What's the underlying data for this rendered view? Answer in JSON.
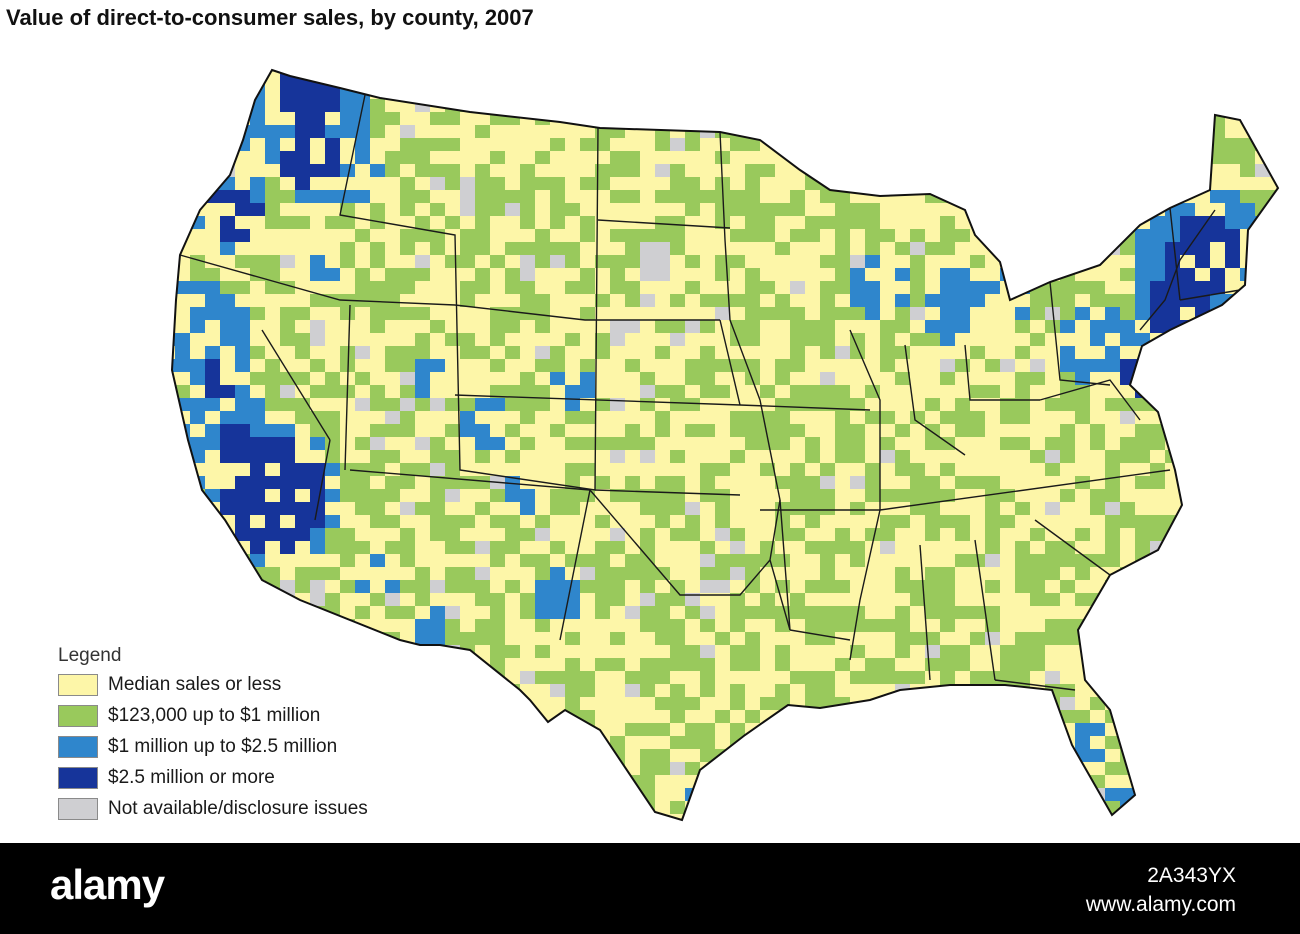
{
  "title": "Value of direct-to-consumer sales, by county, 2007",
  "legend": {
    "title": "Legend",
    "items": [
      {
        "label": "Median sales or less",
        "color": "#fdf6a8"
      },
      {
        "label": "$123,000 up to $1 million",
        "color": "#99c95c"
      },
      {
        "label": "$1 million up to $2.5 million",
        "color": "#2f86cc"
      },
      {
        "label": "$2.5 million or more",
        "color": "#16349a"
      },
      {
        "label": "Not available/disclosure issues",
        "color": "#cfcfd2"
      }
    ]
  },
  "watermark": {
    "logo": "alamy",
    "image_id": "2A343YX",
    "site": "www.alamy.com"
  }
}
